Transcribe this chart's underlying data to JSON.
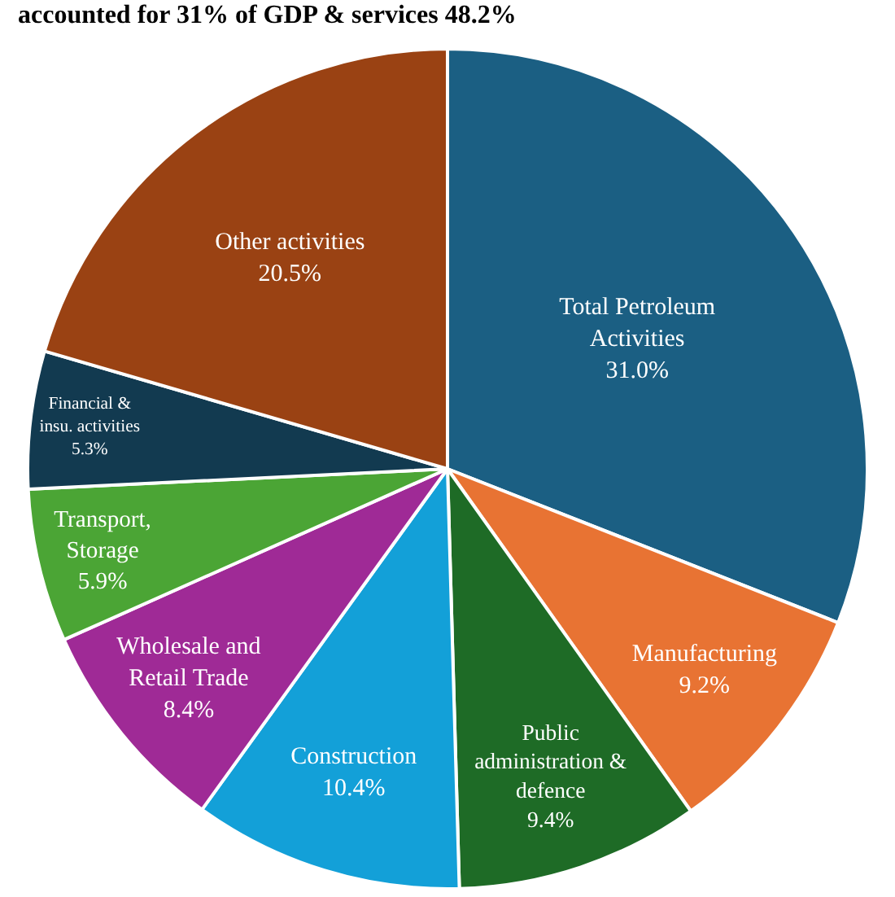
{
  "chart_data": {
    "type": "pie",
    "title": "accounted for 31% of GDP & services 48.2%",
    "categories": [
      "Total Petroleum\nActivities",
      "Manufacturing",
      "Public\nadministration &\ndefence",
      "Construction",
      "Wholesale and\nRetail Trade",
      "Transport,\nStorage",
      "Financial &\ninsu. activities",
      "Other activities"
    ],
    "values": [
      31.0,
      9.2,
      9.4,
      10.4,
      8.4,
      5.9,
      5.3,
      20.5
    ],
    "value_labels": [
      "31.0%",
      "9.2%",
      "9.4%",
      "10.4%",
      "8.4%",
      "5.9%",
      "5.3%",
      "20.5%"
    ],
    "colors": [
      "#1b5f83",
      "#e87333",
      "#1e6b26",
      "#13a0d8",
      "#9f2a96",
      "#4ba535",
      "#123a50",
      "#9a4213"
    ],
    "legend": false
  }
}
